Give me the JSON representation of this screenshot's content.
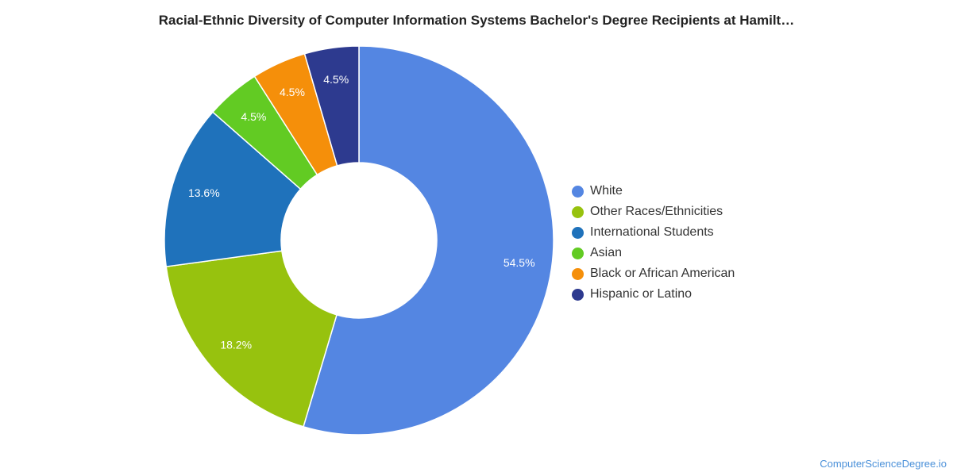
{
  "chart_data": {
    "type": "pie",
    "title": "Racial-Ethnic Diversity of Computer Information Systems Bachelor's Degree Recipients at Hamilt…",
    "donut": true,
    "legend_position": "right",
    "categories": [
      "White",
      "Other Races/Ethnicities",
      "International Students",
      "Asian",
      "Black or African American",
      "Hispanic or Latino"
    ],
    "values": [
      54.5,
      18.2,
      13.6,
      4.5,
      4.5,
      4.5
    ],
    "labels": [
      "54.5%",
      "18.2%",
      "13.6%",
      "4.5%",
      "4.5%",
      "4.5%"
    ],
    "colors": [
      "#5486e2",
      "#97c20e",
      "#1f72bb",
      "#62cb23",
      "#f58f0a",
      "#2d3a8f"
    ]
  },
  "source": "ComputerScienceDegree.io"
}
